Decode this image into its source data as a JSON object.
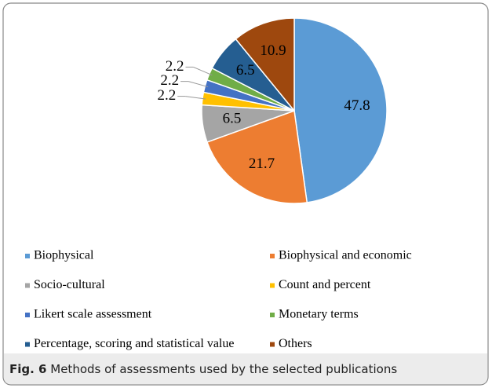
{
  "chart_data": {
    "type": "pie",
    "categories": [
      "Biophysical",
      "Biophysical and economic",
      "Socio-cultural",
      "Count and percent",
      "Likert scale assessment",
      "Monetary terms",
      "Percentage, scoring and statistical value",
      "Others"
    ],
    "values": [
      47.8,
      21.7,
      6.5,
      2.2,
      2.2,
      2.2,
      6.5,
      10.9
    ],
    "colors": [
      "#5b9bd5",
      "#ed7d31",
      "#a5a5a5",
      "#ffc000",
      "#4472c4",
      "#70ad47",
      "#255e91",
      "#9e480e"
    ],
    "caption_label": "Fig. 6",
    "caption": "Methods of assessments used by the selected publications"
  }
}
